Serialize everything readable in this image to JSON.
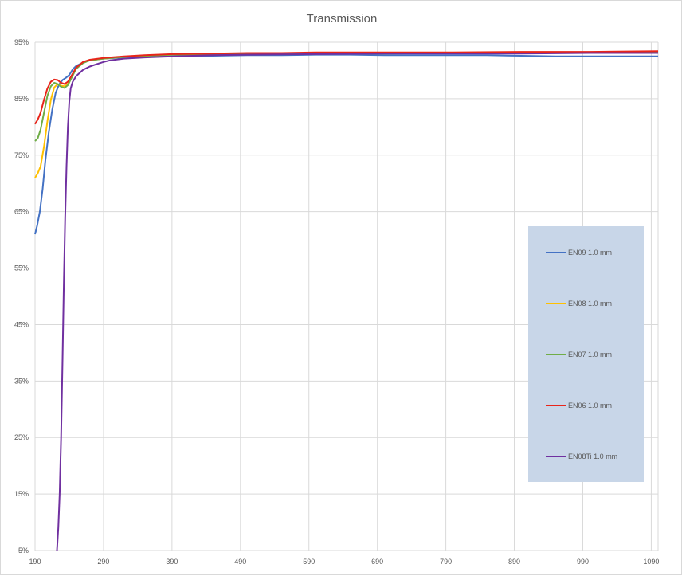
{
  "chart_data": {
    "type": "line",
    "title": "Transmission",
    "xlabel": "",
    "ylabel": "",
    "xlim": [
      190,
      1100
    ],
    "ylim": [
      5,
      95
    ],
    "x_ticks": [
      "190",
      "290",
      "390",
      "490",
      "590",
      "690",
      "790",
      "890",
      "990",
      "1090"
    ],
    "y_ticks": [
      "95%",
      "85%",
      "75%",
      "65%",
      "55%",
      "45%",
      "35%",
      "25%",
      "15%",
      "5%"
    ],
    "grid": true,
    "legend_position": "right",
    "series": [
      {
        "name": "EN09 1.0 mm",
        "color": "#4472c4",
        "points": [
          [
            190,
            61
          ],
          [
            193,
            62.5
          ],
          [
            197,
            65
          ],
          [
            201,
            69
          ],
          [
            205,
            74
          ],
          [
            210,
            79
          ],
          [
            215,
            83
          ],
          [
            220,
            86
          ],
          [
            225,
            87.5
          ],
          [
            230,
            88.3
          ],
          [
            235,
            88.7
          ],
          [
            240,
            89.2
          ],
          [
            245,
            90.2
          ],
          [
            250,
            90.8
          ],
          [
            260,
            91.4
          ],
          [
            270,
            91.8
          ],
          [
            290,
            92.1
          ],
          [
            320,
            92.3
          ],
          [
            350,
            92.4
          ],
          [
            390,
            92.5
          ],
          [
            450,
            92.6
          ],
          [
            500,
            92.7
          ],
          [
            550,
            92.7
          ],
          [
            600,
            92.8
          ],
          [
            650,
            92.8
          ],
          [
            700,
            92.7
          ],
          [
            750,
            92.7
          ],
          [
            800,
            92.7
          ],
          [
            850,
            92.7
          ],
          [
            900,
            92.6
          ],
          [
            950,
            92.5
          ],
          [
            1000,
            92.5
          ],
          [
            1050,
            92.5
          ],
          [
            1100,
            92.5
          ]
        ]
      },
      {
        "name": "EN08 1.0 mm",
        "color": "#ffc000",
        "points": [
          [
            190,
            71
          ],
          [
            194,
            71.8
          ],
          [
            198,
            73
          ],
          [
            203,
            76.5
          ],
          [
            208,
            81
          ],
          [
            213,
            84.8
          ],
          [
            218,
            87
          ],
          [
            223,
            87.6
          ],
          [
            228,
            87.3
          ],
          [
            233,
            87.2
          ],
          [
            238,
            87.6
          ],
          [
            243,
            88.8
          ],
          [
            250,
            90.4
          ],
          [
            260,
            91.4
          ],
          [
            270,
            91.8
          ],
          [
            290,
            92.1
          ],
          [
            320,
            92.4
          ],
          [
            350,
            92.6
          ],
          [
            390,
            92.8
          ],
          [
            450,
            92.9
          ],
          [
            500,
            93.0
          ],
          [
            550,
            93.0
          ],
          [
            600,
            93.0
          ],
          [
            700,
            93.1
          ],
          [
            800,
            93.1
          ],
          [
            900,
            93.2
          ],
          [
            1000,
            93.2
          ],
          [
            1100,
            93.3
          ]
        ]
      },
      {
        "name": "EN07 1.0 mm",
        "color": "#70ad47",
        "points": [
          [
            190,
            77.5
          ],
          [
            194,
            78
          ],
          [
            198,
            79.5
          ],
          [
            203,
            82.5
          ],
          [
            208,
            85.5
          ],
          [
            213,
            87.2
          ],
          [
            218,
            87.8
          ],
          [
            223,
            87.6
          ],
          [
            228,
            87.1
          ],
          [
            233,
            86.9
          ],
          [
            238,
            87.4
          ],
          [
            243,
            88.6
          ],
          [
            250,
            90.3
          ],
          [
            260,
            91.3
          ],
          [
            270,
            91.8
          ],
          [
            290,
            92.1
          ],
          [
            320,
            92.4
          ],
          [
            350,
            92.6
          ],
          [
            390,
            92.8
          ],
          [
            450,
            92.9
          ],
          [
            500,
            93.0
          ],
          [
            550,
            93.0
          ],
          [
            600,
            93.0
          ],
          [
            700,
            93.0
          ],
          [
            800,
            93.1
          ],
          [
            900,
            93.1
          ],
          [
            1000,
            93.1
          ],
          [
            1100,
            93.2
          ]
        ]
      },
      {
        "name": "EN06 1.0 mm",
        "color": "#e8251a",
        "points": [
          [
            190,
            80.5
          ],
          [
            194,
            81.3
          ],
          [
            198,
            82.5
          ],
          [
            203,
            84.8
          ],
          [
            208,
            86.8
          ],
          [
            213,
            88
          ],
          [
            218,
            88.4
          ],
          [
            223,
            88.3
          ],
          [
            228,
            87.8
          ],
          [
            233,
            87.6
          ],
          [
            238,
            88
          ],
          [
            243,
            89
          ],
          [
            250,
            90.5
          ],
          [
            260,
            91.5
          ],
          [
            270,
            91.9
          ],
          [
            290,
            92.2
          ],
          [
            320,
            92.5
          ],
          [
            350,
            92.7
          ],
          [
            390,
            92.9
          ],
          [
            450,
            93.0
          ],
          [
            500,
            93.1
          ],
          [
            550,
            93.1
          ],
          [
            600,
            93.2
          ],
          [
            700,
            93.2
          ],
          [
            800,
            93.2
          ],
          [
            900,
            93.3
          ],
          [
            1000,
            93.3
          ],
          [
            1100,
            93.4
          ]
        ]
      },
      {
        "name": "EN08Ti 1.0 mm",
        "color": "#7030a0",
        "points": [
          [
            222,
            5
          ],
          [
            224,
            9
          ],
          [
            226,
            15
          ],
          [
            228,
            25
          ],
          [
            230,
            38
          ],
          [
            232,
            52
          ],
          [
            234,
            64
          ],
          [
            236,
            73
          ],
          [
            238,
            80
          ],
          [
            240,
            84.5
          ],
          [
            242,
            86.8
          ],
          [
            245,
            88
          ],
          [
            250,
            89
          ],
          [
            260,
            90.1
          ],
          [
            270,
            90.7
          ],
          [
            280,
            91.1
          ],
          [
            290,
            91.5
          ],
          [
            300,
            91.8
          ],
          [
            320,
            92.1
          ],
          [
            350,
            92.3
          ],
          [
            390,
            92.5
          ],
          [
            450,
            92.7
          ],
          [
            500,
            92.8
          ],
          [
            600,
            92.9
          ],
          [
            700,
            93.0
          ],
          [
            800,
            93.0
          ],
          [
            900,
            93.0
          ],
          [
            1000,
            93.1
          ],
          [
            1100,
            93.1
          ]
        ]
      }
    ]
  }
}
